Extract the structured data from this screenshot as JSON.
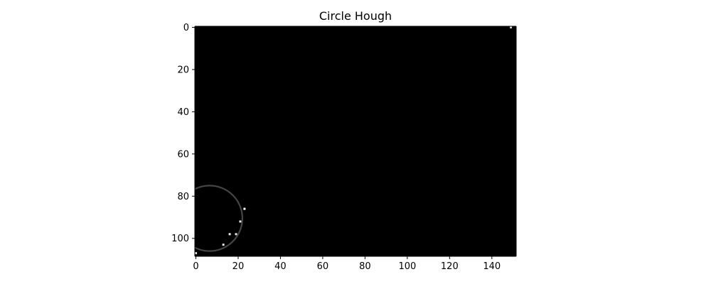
{
  "chart_data": {
    "type": "heatmap",
    "title": "Circle Hough",
    "xlabel": "",
    "ylabel": "",
    "xlim": [
      -0.5,
      151.5
    ],
    "ylim": [
      108.5,
      -0.5
    ],
    "xticks": [
      0,
      20,
      40,
      60,
      80,
      100,
      120,
      140
    ],
    "yticks": [
      0,
      20,
      40,
      60,
      80,
      100
    ],
    "colormap": "gray",
    "background": "#000000",
    "circle": {
      "cx": 6.5,
      "cy": 90.5,
      "r": 15.5,
      "intensity": 0.27
    },
    "points": [
      {
        "x": 149,
        "y": 0,
        "intensity": 0.85
      },
      {
        "x": 23,
        "y": 86,
        "intensity": 1.0
      },
      {
        "x": 21,
        "y": 92,
        "intensity": 0.9
      },
      {
        "x": 19,
        "y": 98,
        "intensity": 0.9
      },
      {
        "x": 16,
        "y": 98,
        "intensity": 0.9
      },
      {
        "x": 13,
        "y": 103,
        "intensity": 0.9
      },
      {
        "x": 0,
        "y": 107,
        "intensity": 0.9
      }
    ],
    "grid": false
  },
  "colors": {
    "axes_frame": "#000000",
    "tick_text": "#000000"
  }
}
